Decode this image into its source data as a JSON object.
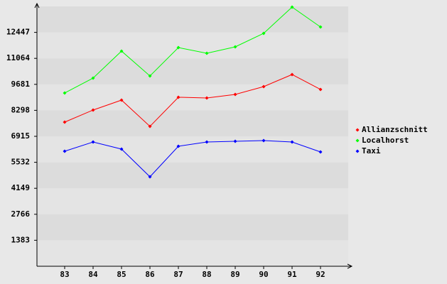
{
  "chart_data": {
    "type": "line",
    "categories": [
      "83",
      "84",
      "85",
      "86",
      "87",
      "88",
      "89",
      "90",
      "91",
      "92"
    ],
    "series": [
      {
        "name": "Allianzschnitt",
        "color": "#ff0000",
        "values": [
          7671,
          8314,
          8843,
          7445,
          8994,
          8956,
          9145,
          9561,
          10203,
          9410
        ]
      },
      {
        "name": "Localhorst",
        "color": "#00ff00",
        "values": [
          9221,
          10014,
          11450,
          10128,
          11639,
          11337,
          11677,
          12395,
          13793,
          12735
        ]
      },
      {
        "name": "Taxi",
        "color": "#0000ff",
        "values": [
          6122,
          6613,
          6235,
          4762,
          6387,
          6613,
          6651,
          6689,
          6613,
          6084
        ]
      }
    ],
    "ylim": [
      0,
      13830
    ],
    "yticks": [
      1383,
      2766,
      4149,
      5532,
      6915,
      8298,
      9681,
      11064,
      12447
    ],
    "grid": true,
    "legend": "right"
  }
}
